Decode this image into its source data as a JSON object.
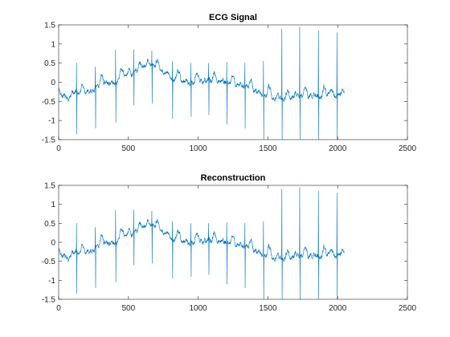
{
  "chart_data": [
    {
      "type": "line",
      "title": "ECG Signal",
      "xlabel": "",
      "ylabel": "",
      "xlim": [
        0,
        2500
      ],
      "ylim": [
        -1.5,
        1.5
      ],
      "xticks": [
        0,
        500,
        1000,
        1500,
        2000,
        2500
      ],
      "yticks": [
        1.5,
        1,
        0.5,
        0,
        -0.5,
        -1,
        -1.5
      ],
      "xtick_labels": [
        "0",
        "500",
        "1000",
        "1500",
        "2000",
        "2500"
      ],
      "ytick_labels": [
        "1.5",
        "1",
        "0.5",
        "0",
        "-0.5",
        "-1",
        "-1.5"
      ],
      "grid": false,
      "line_color": "#0072bd",
      "samples": 2048,
      "baseline_knots": [
        [
          0,
          -0.15
        ],
        [
          20,
          -0.3
        ],
        [
          60,
          -0.45
        ],
        [
          120,
          -0.28
        ],
        [
          180,
          -0.3
        ],
        [
          250,
          -0.22
        ],
        [
          290,
          -0.08
        ],
        [
          330,
          0.0
        ],
        [
          380,
          -0.05
        ],
        [
          420,
          0.05
        ],
        [
          480,
          0.18
        ],
        [
          520,
          0.25
        ],
        [
          560,
          0.28
        ],
        [
          600,
          0.4
        ],
        [
          650,
          0.5
        ],
        [
          700,
          0.42
        ],
        [
          760,
          0.22
        ],
        [
          820,
          0.12
        ],
        [
          880,
          0.05
        ],
        [
          940,
          0.02
        ],
        [
          1000,
          0.02
        ],
        [
          1060,
          0.03
        ],
        [
          1120,
          0.04
        ],
        [
          1180,
          0.03
        ],
        [
          1240,
          -0.02
        ],
        [
          1300,
          -0.08
        ],
        [
          1360,
          -0.15
        ],
        [
          1420,
          -0.25
        ],
        [
          1480,
          -0.33
        ],
        [
          1540,
          -0.38
        ],
        [
          1600,
          -0.4
        ],
        [
          1660,
          -0.42
        ],
        [
          1720,
          -0.38
        ],
        [
          1780,
          -0.35
        ],
        [
          1840,
          -0.38
        ],
        [
          1900,
          -0.35
        ],
        [
          1960,
          -0.3
        ],
        [
          2000,
          -0.3
        ],
        [
          2048,
          -0.48
        ]
      ],
      "beats": [
        [
          128,
          0.5,
          -1.35
        ],
        [
          263,
          0.4,
          -1.2
        ],
        [
          408,
          0.85,
          -1.05
        ],
        [
          538,
          0.85,
          -0.6
        ],
        [
          668,
          0.82,
          -0.55
        ],
        [
          815,
          0.55,
          -0.95
        ],
        [
          948,
          0.5,
          -0.9
        ],
        [
          1075,
          0.5,
          -0.85
        ],
        [
          1205,
          0.52,
          -1.1
        ],
        [
          1335,
          0.5,
          -1.2
        ],
        [
          1468,
          0.55,
          -1.5
        ],
        [
          1600,
          1.4,
          -1.5
        ],
        [
          1728,
          1.45,
          -1.5
        ],
        [
          1862,
          1.35,
          -1.5
        ],
        [
          1995,
          1.3,
          -1.5
        ]
      ]
    },
    {
      "type": "line",
      "title": "Reconstruction",
      "xlabel": "",
      "ylabel": "",
      "xlim": [
        0,
        2500
      ],
      "ylim": [
        -1.5,
        1.5
      ],
      "xticks": [
        0,
        500,
        1000,
        1500,
        2000,
        2500
      ],
      "yticks": [
        1.5,
        1,
        0.5,
        0,
        -0.5,
        -1,
        -1.5
      ],
      "xtick_labels": [
        "0",
        "500",
        "1000",
        "1500",
        "2000",
        "2500"
      ],
      "ytick_labels": [
        "1.5",
        "1",
        "0.5",
        "0",
        "-0.5",
        "-1",
        "-1.5"
      ],
      "grid": false,
      "line_color": "#0072bd",
      "samples": 2048,
      "baseline_knots": [
        [
          0,
          -0.15
        ],
        [
          20,
          -0.3
        ],
        [
          60,
          -0.45
        ],
        [
          120,
          -0.28
        ],
        [
          180,
          -0.3
        ],
        [
          250,
          -0.22
        ],
        [
          290,
          -0.08
        ],
        [
          330,
          0.0
        ],
        [
          380,
          -0.05
        ],
        [
          420,
          0.05
        ],
        [
          480,
          0.18
        ],
        [
          520,
          0.25
        ],
        [
          560,
          0.28
        ],
        [
          600,
          0.4
        ],
        [
          650,
          0.5
        ],
        [
          700,
          0.42
        ],
        [
          760,
          0.22
        ],
        [
          820,
          0.12
        ],
        [
          880,
          0.05
        ],
        [
          940,
          0.02
        ],
        [
          1000,
          0.02
        ],
        [
          1060,
          0.03
        ],
        [
          1120,
          0.04
        ],
        [
          1180,
          0.03
        ],
        [
          1240,
          -0.02
        ],
        [
          1300,
          -0.08
        ],
        [
          1360,
          -0.15
        ],
        [
          1420,
          -0.25
        ],
        [
          1480,
          -0.33
        ],
        [
          1540,
          -0.38
        ],
        [
          1600,
          -0.4
        ],
        [
          1660,
          -0.42
        ],
        [
          1720,
          -0.38
        ],
        [
          1780,
          -0.35
        ],
        [
          1840,
          -0.38
        ],
        [
          1900,
          -0.35
        ],
        [
          1960,
          -0.3
        ],
        [
          2000,
          -0.3
        ],
        [
          2048,
          -0.48
        ]
      ],
      "beats": [
        [
          128,
          0.5,
          -1.35
        ],
        [
          263,
          0.4,
          -1.2
        ],
        [
          408,
          0.85,
          -1.05
        ],
        [
          538,
          0.85,
          -0.6
        ],
        [
          668,
          0.82,
          -0.55
        ],
        [
          815,
          0.55,
          -0.95
        ],
        [
          948,
          0.5,
          -0.9
        ],
        [
          1075,
          0.5,
          -0.85
        ],
        [
          1205,
          0.52,
          -1.1
        ],
        [
          1335,
          0.5,
          -1.2
        ],
        [
          1468,
          0.55,
          -1.5
        ],
        [
          1600,
          1.4,
          -1.5
        ],
        [
          1728,
          1.45,
          -1.5
        ],
        [
          1862,
          1.35,
          -1.5
        ],
        [
          1995,
          1.3,
          -1.5
        ]
      ]
    }
  ]
}
